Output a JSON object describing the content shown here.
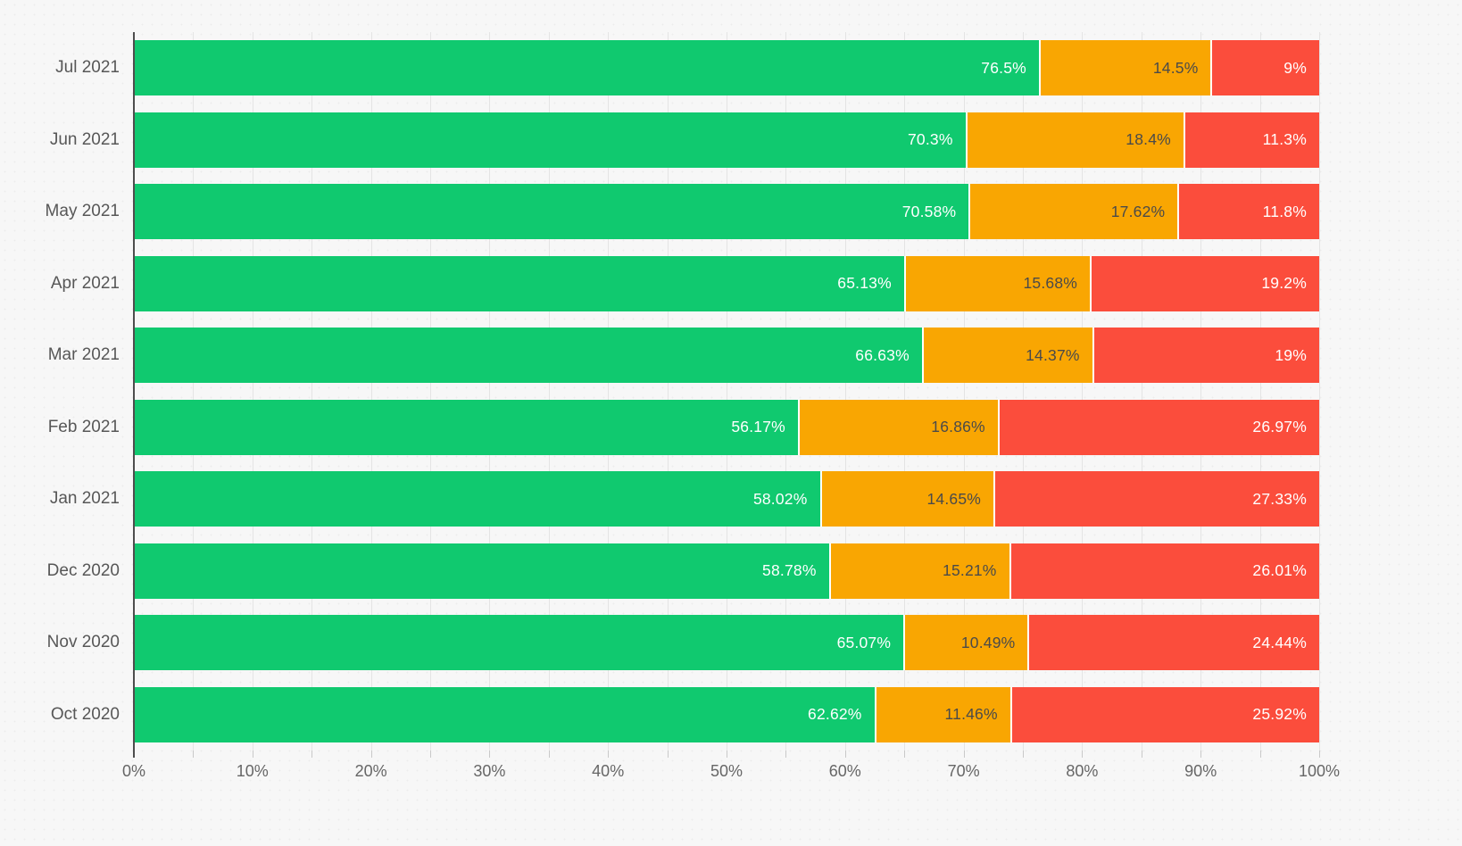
{
  "chart_data": {
    "type": "bar",
    "orientation": "horizontal",
    "stacked": true,
    "title": "",
    "xlabel": "",
    "ylabel": "",
    "legend": "none",
    "grid": "vertical-minor-lines",
    "value_suffix": "%",
    "categories": [
      "Jul 2021",
      "Jun 2021",
      "May 2021",
      "Apr 2021",
      "Mar 2021",
      "Feb 2021",
      "Jan 2021",
      "Dec 2020",
      "Nov 2020",
      "Oct 2020"
    ],
    "series": [
      {
        "name": "green",
        "color": "#10C96F",
        "label_color": "#ffffff",
        "values": [
          76.5,
          70.3,
          70.58,
          65.13,
          66.63,
          56.17,
          58.02,
          58.78,
          65.07,
          62.62
        ]
      },
      {
        "name": "orange",
        "color": "#F9A602",
        "label_color": "#4a4a4a",
        "values": [
          14.5,
          18.4,
          17.62,
          15.68,
          14.37,
          16.86,
          14.65,
          15.21,
          10.49,
          11.46
        ]
      },
      {
        "name": "red",
        "color": "#FB4D3C",
        "label_color": "#ffffff",
        "values": [
          9,
          11.3,
          11.8,
          19.2,
          19,
          26.97,
          27.33,
          26.01,
          24.44,
          25.92
        ]
      }
    ],
    "x_axis": {
      "min": 0,
      "max": 100,
      "label_step": 10,
      "grid_step": 5,
      "tick_labels": [
        "0%",
        "10%",
        "20%",
        "30%",
        "40%",
        "50%",
        "60%",
        "70%",
        "80%",
        "90%",
        "100%"
      ]
    },
    "colors": {
      "background": "#f7f7f7",
      "gridline": "#e4e4e4",
      "axis_line": "#4d4d4d",
      "tick": "#c9c9c9",
      "axis_text": "#666666",
      "category_text": "#575757",
      "segment_separator": "#ffffff"
    }
  }
}
